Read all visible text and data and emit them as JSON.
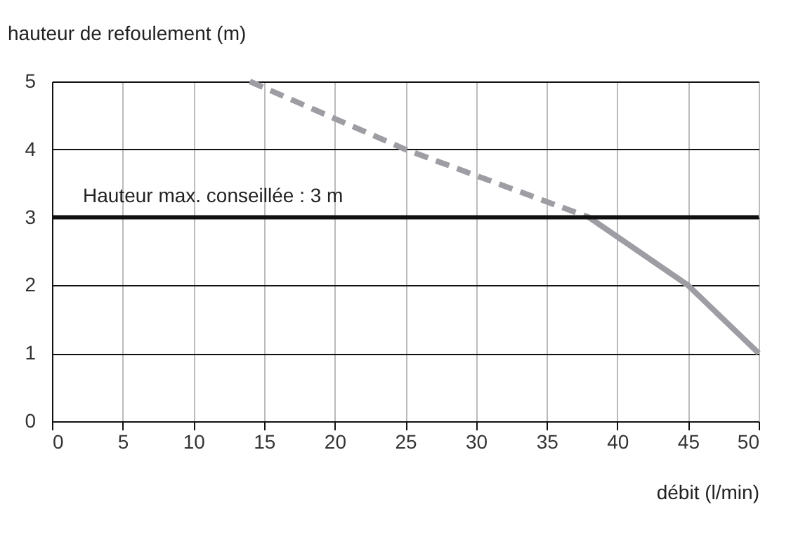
{
  "chart_data": {
    "type": "line",
    "xlabel": "débit (l/min)",
    "ylabel": "hauteur de refoulement (m)",
    "series": [
      {
        "color": "#9d9da3",
        "line_style": "dashed",
        "x": [
          14,
          25,
          38
        ],
        "values": [
          5,
          4,
          3
        ]
      },
      {
        "color": "#9d9da3",
        "line_style": "solid",
        "x": [
          38,
          45,
          50
        ],
        "values": [
          3,
          2,
          1
        ]
      }
    ],
    "xlim": [
      0,
      50
    ],
    "xticks": [
      0,
      5,
      10,
      15,
      20,
      25,
      30,
      35,
      40,
      45,
      50
    ],
    "ylim": [
      0,
      5
    ],
    "yticks": [
      0,
      1,
      2,
      3,
      4,
      5
    ],
    "ref_lines": [
      {
        "axis": "y",
        "value": 3,
        "label": "Hauteur max. conseillée : 3 m",
        "color": "#111111"
      }
    ],
    "grid": true,
    "marker": "none"
  }
}
